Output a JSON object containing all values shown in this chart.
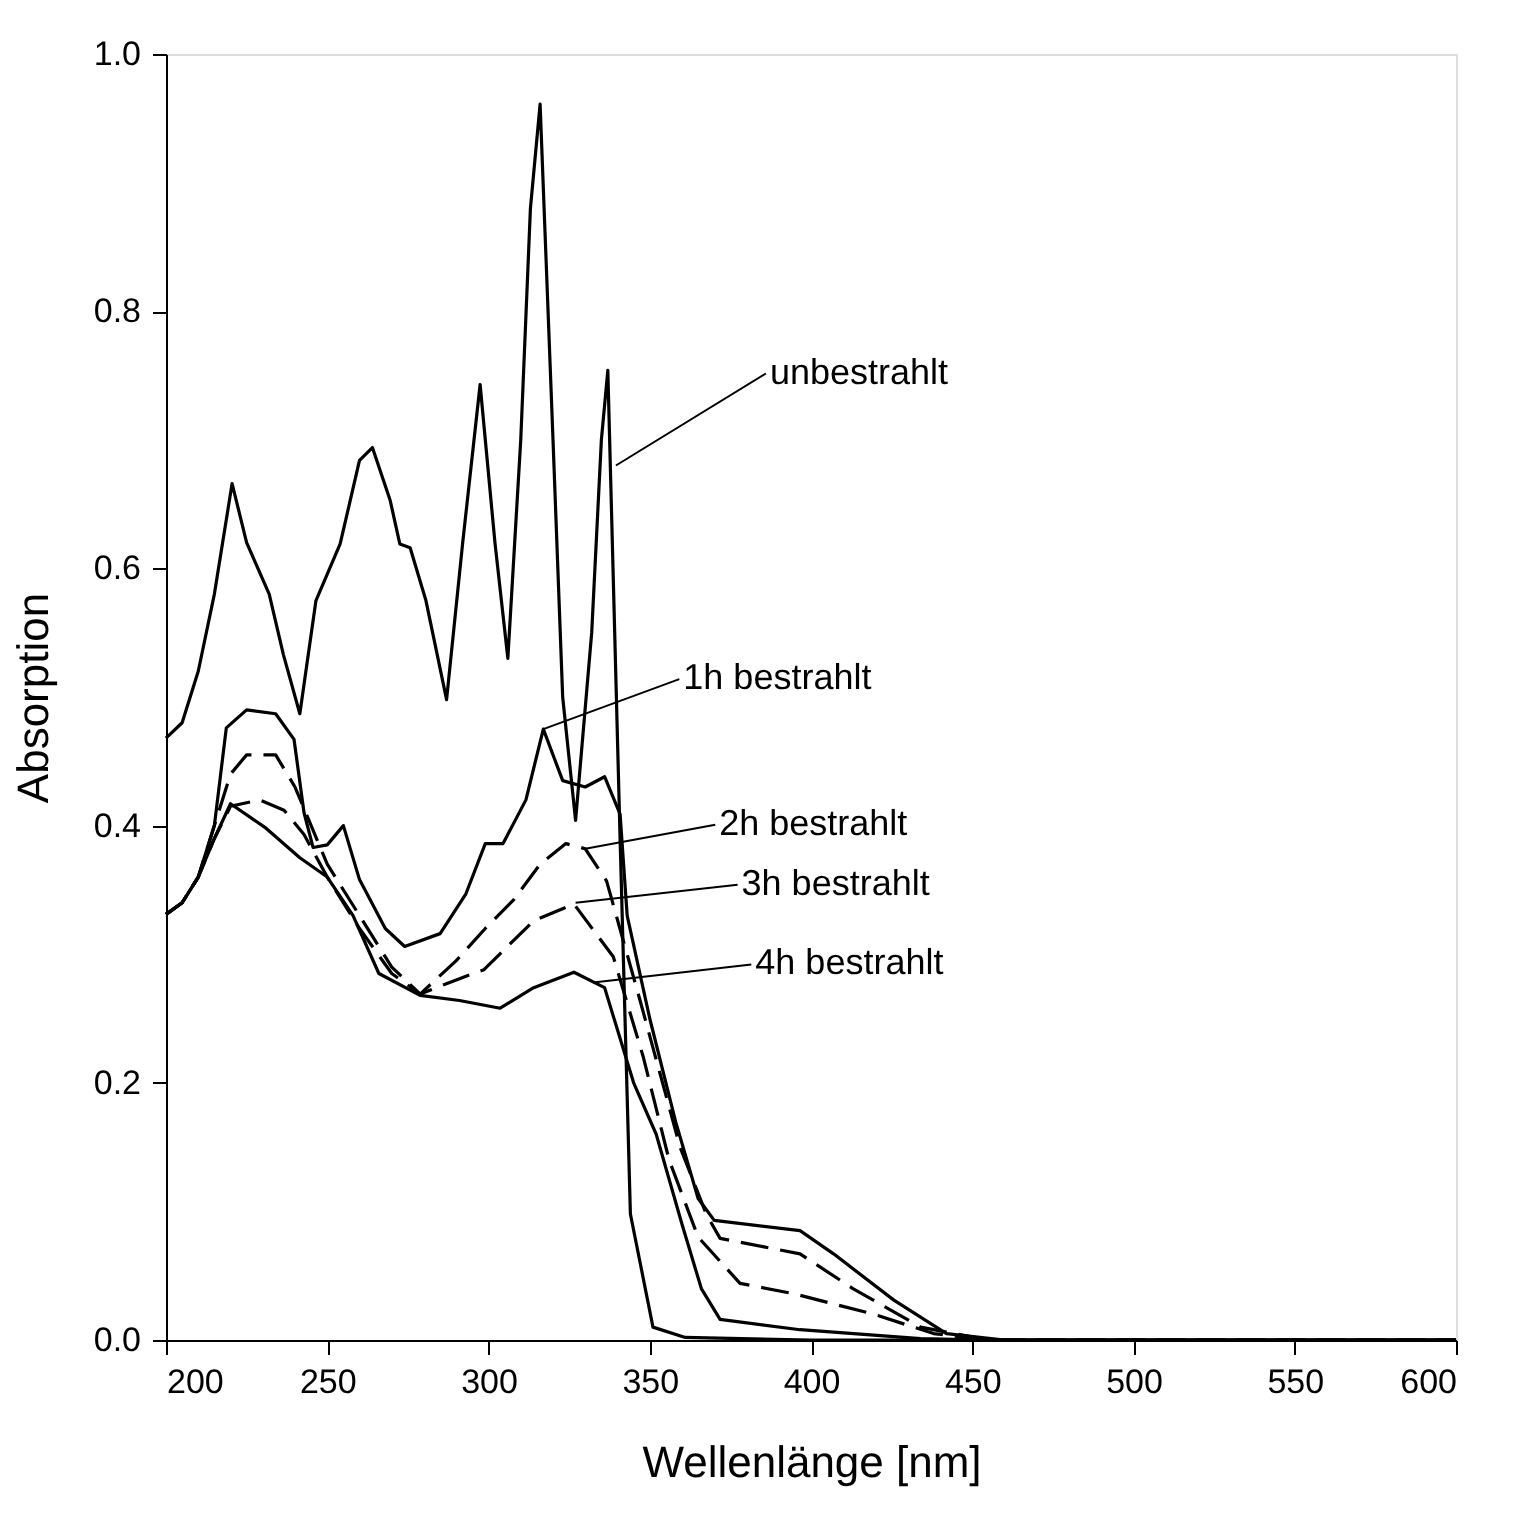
{
  "chart_data": {
    "type": "line",
    "xlabel": "Wellenlänge [nm]",
    "ylabel": "Absorption",
    "xlim": [
      200,
      600
    ],
    "ylim": [
      0,
      1
    ],
    "xticks": [
      200,
      250,
      300,
      350,
      400,
      450,
      500,
      550,
      600
    ],
    "yticks": [
      {
        "value": 0,
        "label": "0.0"
      },
      {
        "value": 0.2,
        "label": "0.2"
      },
      {
        "value": 0.4,
        "label": "0.4"
      },
      {
        "value": 0.6,
        "label": "0.6"
      },
      {
        "value": 0.8,
        "label": "0.8"
      },
      {
        "value": 1,
        "label": "1.0"
      }
    ],
    "grid": false,
    "marker": "none",
    "series": [
      {
        "color": "#000000",
        "line_style": "solid",
        "x": [
          200,
          205,
          210,
          215,
          220.5,
          225,
          232,
          236.4,
          241.5,
          246.5,
          254,
          260,
          264,
          269.5,
          272.5,
          275.7,
          280.6,
          287,
          292,
          297.4,
          302,
          306,
          310,
          313,
          316,
          320,
          323,
          327,
          332,
          335,
          337,
          340.8,
          344,
          351,
          361,
          400,
          450,
          500,
          550,
          600
        ],
        "values": [
          0.468,
          0.48,
          0.52,
          0.58,
          0.666,
          0.62,
          0.58,
          0.533,
          0.487,
          0.575,
          0.619,
          0.684,
          0.694,
          0.653,
          0.619,
          0.616,
          0.575,
          0.498,
          0.62,
          0.743,
          0.62,
          0.53,
          0.7,
          0.88,
          0.961,
          0.7,
          0.5,
          0.404,
          0.55,
          0.7,
          0.754,
          0.39,
          0.098,
          0.01,
          0.002,
          0,
          0,
          0,
          0,
          0
        ]
      },
      {
        "color": "#000000",
        "line_style": "solid",
        "x": [
          200,
          205,
          210,
          215,
          218.7,
          225,
          234,
          239.7,
          242.8,
          245.6,
          250,
          255,
          260,
          268,
          274,
          285,
          293,
          299,
          304.5,
          311.6,
          317,
          323,
          330,
          336,
          340.8,
          343,
          350,
          358,
          365,
          370,
          396.6,
          407,
          425.7,
          442,
          460,
          500,
          550,
          600
        ],
        "values": [
          0.331,
          0.34,
          0.36,
          0.4,
          0.476,
          0.49,
          0.487,
          0.467,
          0.41,
          0.383,
          0.385,
          0.4,
          0.358,
          0.32,
          0.306,
          0.316,
          0.347,
          0.386,
          0.386,
          0.42,
          0.475,
          0.435,
          0.43,
          0.438,
          0.409,
          0.33,
          0.25,
          0.17,
          0.11,
          0.093,
          0.085,
          0.067,
          0.031,
          0.005,
          0,
          0,
          0,
          0
        ]
      },
      {
        "color": "#000000",
        "line_style": "dashed",
        "x": [
          200,
          205,
          210,
          215,
          220,
          225,
          234,
          240,
          250,
          260,
          270,
          278.8,
          290,
          299,
          307.7,
          316,
          324,
          330,
          336.6,
          347,
          359.4,
          367.5,
          371.8,
          396.6,
          413,
          434,
          455,
          500,
          550,
          600
        ],
        "values": [
          0.331,
          0.34,
          0.36,
          0.4,
          0.44,
          0.455,
          0.455,
          0.43,
          0.37,
          0.33,
          0.29,
          0.269,
          0.295,
          0.32,
          0.342,
          0.37,
          0.386,
          0.382,
          0.357,
          0.264,
          0.15,
          0.098,
          0.079,
          0.067,
          0.04,
          0.01,
          0,
          0,
          0,
          0
        ]
      },
      {
        "color": "#000000",
        "line_style": "dashed",
        "x": [
          200,
          205,
          210,
          215,
          220,
          229,
          236.6,
          242.8,
          250,
          260,
          270,
          278.8,
          290,
          298.6,
          314,
          326.5,
          338.7,
          348,
          356,
          365,
          378,
          394.7,
          419.5,
          438,
          455,
          500,
          550,
          600
        ],
        "values": [
          0.331,
          0.34,
          0.36,
          0.39,
          0.415,
          0.42,
          0.412,
          0.393,
          0.36,
          0.32,
          0.285,
          0.269,
          0.28,
          0.288,
          0.326,
          0.339,
          0.298,
          0.22,
          0.14,
          0.08,
          0.044,
          0.036,
          0.02,
          0.005,
          0,
          0,
          0,
          0
        ]
      },
      {
        "color": "#000000",
        "line_style": "solid",
        "x": [
          200,
          205,
          210,
          215,
          220,
          231,
          241.5,
          250,
          258,
          266,
          278.8,
          291,
          303.6,
          314,
          326.5,
          336,
          345,
          352,
          360,
          366,
          371.8,
          396.6,
          434,
          455,
          500,
          550,
          600
        ],
        "values": [
          0.331,
          0.34,
          0.36,
          0.39,
          0.417,
          0.398,
          0.375,
          0.36,
          0.33,
          0.285,
          0.268,
          0.264,
          0.258,
          0.274,
          0.286,
          0.274,
          0.2,
          0.16,
          0.09,
          0.04,
          0.016,
          0.008,
          0.001,
          0,
          0,
          0,
          0
        ]
      }
    ],
    "annotations": [
      {
        "text": "unbestrahlt",
        "x": 339.5,
        "y": 0.68
      },
      {
        "text": "1h bestrahlt",
        "x": 317,
        "y": 0.475
      },
      {
        "text": "2h bestrahlt",
        "x": 330,
        "y": 0.382
      },
      {
        "text": "3h bestrahlt",
        "x": 327,
        "y": 0.34
      },
      {
        "text": "4h bestrahlt",
        "x": 332.5,
        "y": 0.278
      }
    ]
  }
}
